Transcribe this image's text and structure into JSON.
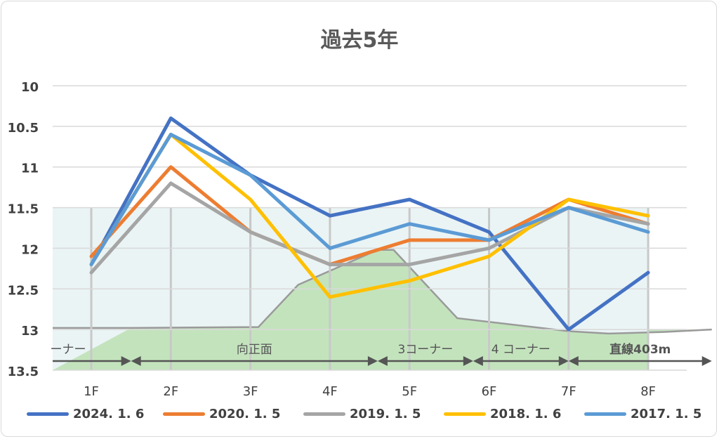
{
  "chart_data": {
    "type": "line",
    "title": "過去5年",
    "categories": [
      "1F",
      "2F",
      "3F",
      "4F",
      "5F",
      "6F",
      "7F",
      "8F"
    ],
    "y_ticks": [
      "10",
      "10.5",
      "11",
      "11.5",
      "12",
      "12.5",
      "13",
      "13.5"
    ],
    "ylim": [
      10,
      13.5
    ],
    "y_reversed": true,
    "grid": true,
    "legend_position": "bottom",
    "series": [
      {
        "name": "2024. 1. 6",
        "color": "#4472C4",
        "values": [
          12.2,
          10.4,
          11.1,
          11.6,
          11.4,
          11.8,
          13.0,
          12.3
        ]
      },
      {
        "name": "2020. 1. 5",
        "color": "#ED7D31",
        "values": [
          12.1,
          11.0,
          11.8,
          12.2,
          11.9,
          11.9,
          11.4,
          11.7
        ]
      },
      {
        "name": "2019. 1. 5",
        "color": "#A5A5A5",
        "values": [
          12.3,
          11.2,
          11.8,
          12.2,
          12.2,
          12.0,
          11.5,
          11.7
        ]
      },
      {
        "name": "2018. 1. 6",
        "color": "#FFC000",
        "values": [
          12.2,
          10.6,
          11.4,
          12.6,
          12.4,
          12.1,
          11.4,
          11.6
        ]
      },
      {
        "name": "2017. 1. 5",
        "color": "#5B9BD5",
        "values": [
          12.2,
          10.6,
          11.1,
          12.0,
          11.7,
          11.9,
          11.5,
          11.8
        ]
      }
    ],
    "course": {
      "band_ylim": [
        11.5,
        13.5
      ],
      "elevation_curve": [
        [
          0.5,
          12.98
        ],
        [
          2.1,
          12.97
        ],
        [
          2.6,
          12.45
        ],
        [
          3.6,
          12.02
        ],
        [
          3.8,
          12.02
        ],
        [
          4.6,
          12.86
        ],
        [
          6.0,
          13.02
        ],
        [
          6.5,
          13.05
        ],
        [
          7.2,
          13.03
        ],
        [
          7.8,
          13.0
        ]
      ],
      "sections": [
        {
          "label": "ーナー",
          "from": 0.0,
          "to": 0.5
        },
        {
          "label": "向正面",
          "from": 0.5,
          "to": 3.6
        },
        {
          "label": "3コーナー",
          "from": 3.6,
          "to": 4.8
        },
        {
          "label": "4 コーナー",
          "from": 4.8,
          "to": 6.0
        },
        {
          "label": "直線403m",
          "from": 6.0,
          "to": 7.8
        }
      ]
    }
  }
}
